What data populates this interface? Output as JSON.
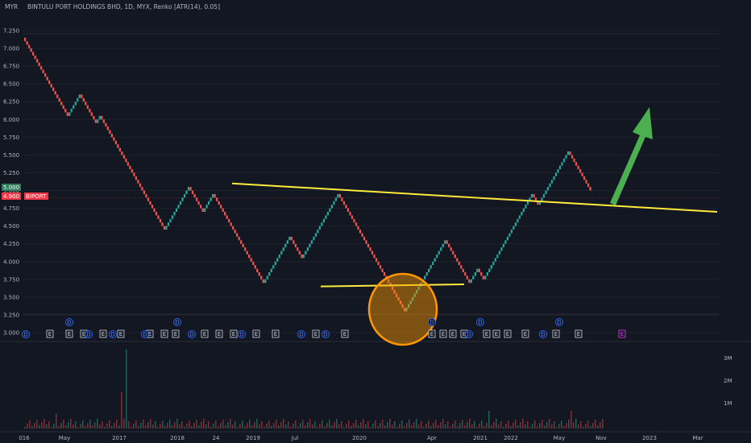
{
  "header": {
    "currency": "MYR",
    "title": "BINTULU PORT HOLDINGS BHD, 1D, MYX, Renko [ATR(14), 0.05]"
  },
  "price_badges": {
    "last_value": "5.000",
    "current_value": "4.900",
    "symbol": "BIPORT",
    "last_color": "#2e7d5b",
    "current_color": "#f23645"
  },
  "event_markers": {
    "earnings_label": "E",
    "dividend_label": "D"
  },
  "chart_data": {
    "type": "renko",
    "ylim": [
      3.0,
      7.3
    ],
    "y_ticks": [
      "7.250",
      "7.000",
      "6.750",
      "6.500",
      "6.250",
      "6.000",
      "5.750",
      "5.500",
      "5.250",
      "5.000",
      "4.750",
      "4.500",
      "4.250",
      "4.000",
      "3.750",
      "3.500",
      "3.250",
      "3.000"
    ],
    "x_ticks": [
      "016",
      "May",
      "2017",
      "2018",
      "24",
      "2019",
      "Jul",
      "2020",
      "Apr",
      "2021",
      "2022",
      "May",
      "Nov",
      "2023",
      "Mar"
    ],
    "volume_ticks": [
      "3M",
      "2M",
      "1M"
    ],
    "brick_size": 0.05,
    "swing_points": [
      7.15,
      6.05,
      6.35,
      5.95,
      6.05,
      5.75,
      4.45,
      5.05,
      4.7,
      4.95,
      3.7,
      4.35,
      4.05,
      4.95,
      3.3,
      4.3,
      3.7,
      3.9,
      3.75,
      4.95,
      4.8,
      5.3,
      5.55,
      5.0
    ],
    "resistance_line": {
      "from": 5.1,
      "to": 4.7,
      "color": "#ffeb3b"
    },
    "support_line": {
      "from": 3.65,
      "to": 3.68,
      "color": "#ffeb3b"
    },
    "colors": {
      "up": "#26a69a",
      "down": "#ef5350",
      "arrow": "#4caf50",
      "circle": "#ff9800"
    }
  }
}
